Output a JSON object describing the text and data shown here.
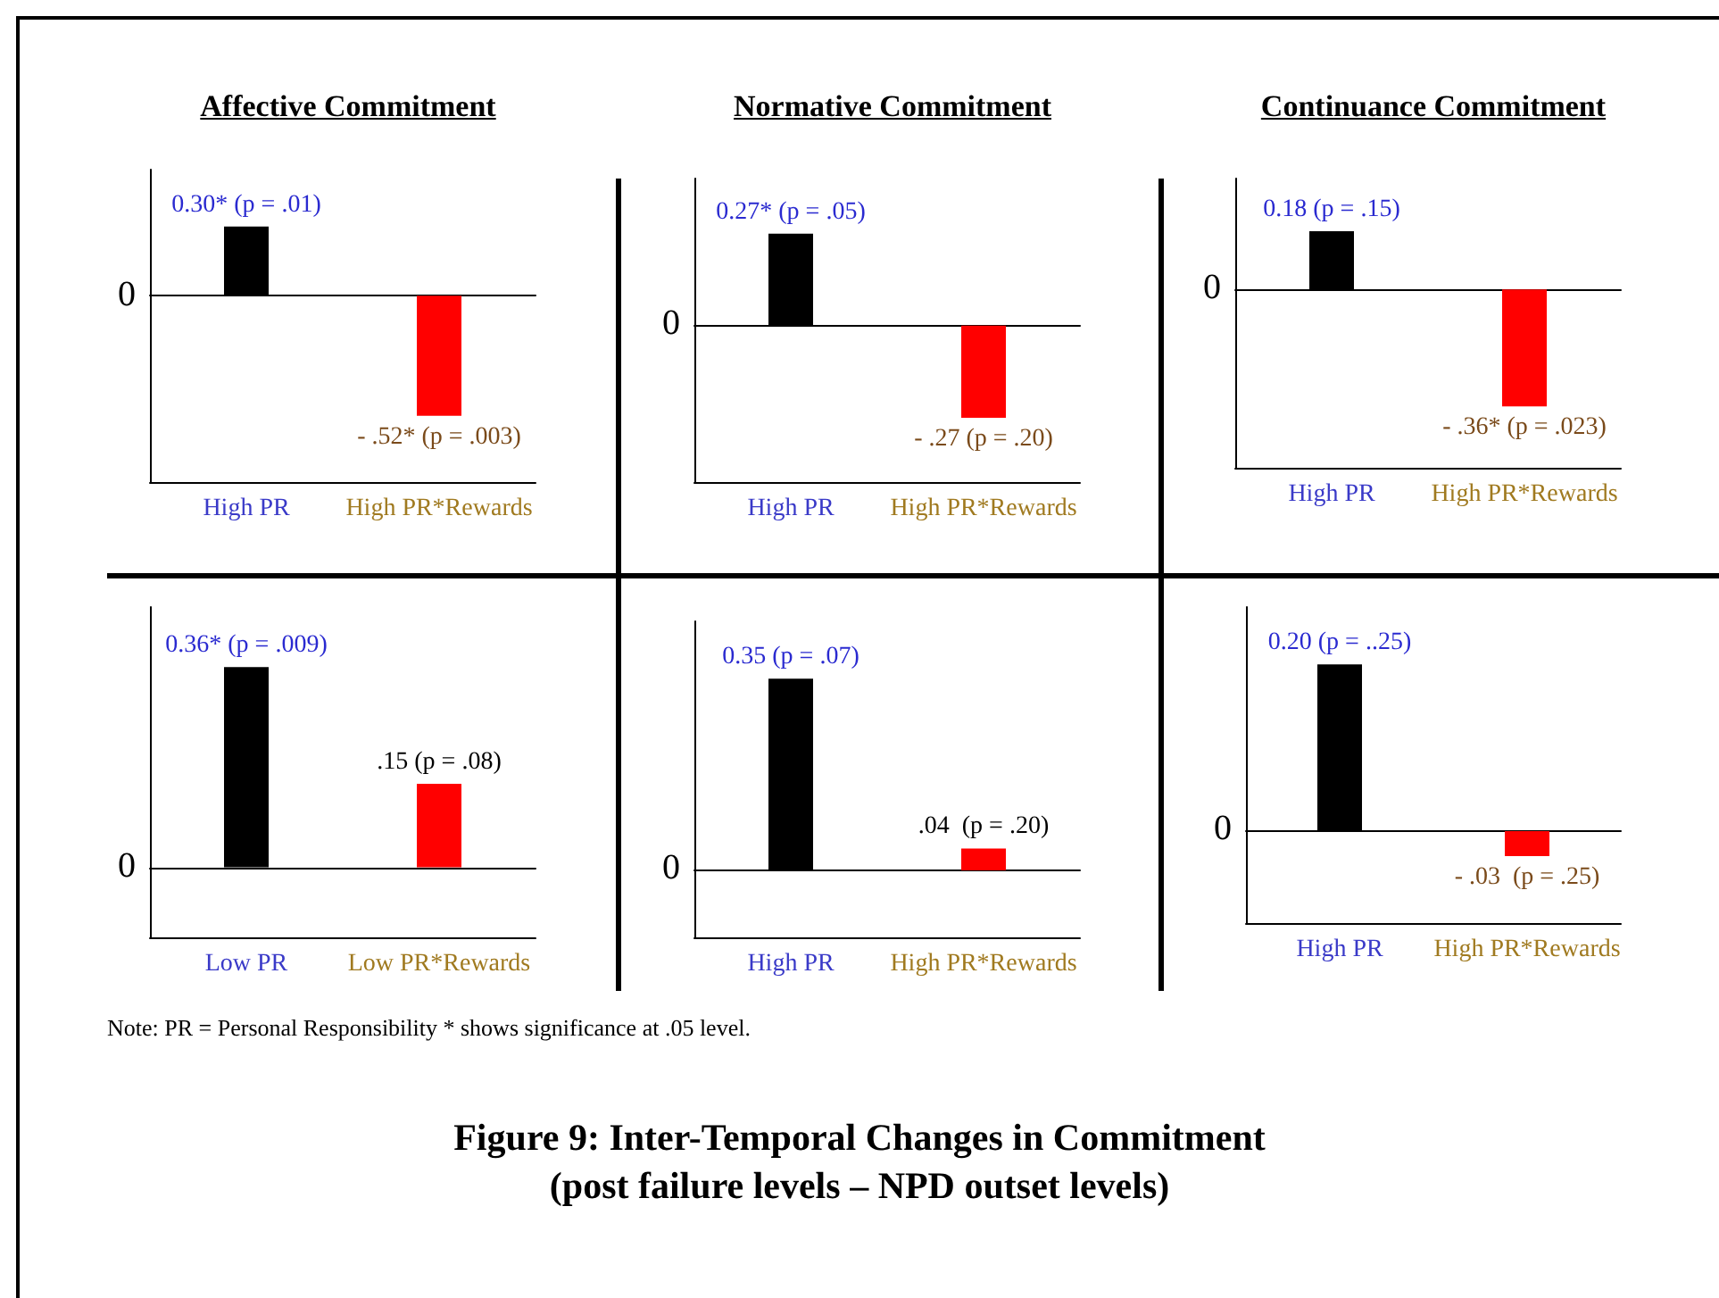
{
  "chart_data": [
    {
      "type": "bar",
      "title": "Affective Commitment",
      "categories": [
        "High PR",
        "High PR*Rewards"
      ],
      "values": [
        0.3,
        -0.52
      ],
      "colors": [
        "#000000",
        "#ff0000"
      ],
      "value_labels": [
        "0.30* (p = .01)",
        "- .52* (p = .003)"
      ],
      "annotations": [
        "0"
      ]
    },
    {
      "type": "bar",
      "title": "Normative Commitment",
      "categories": [
        "High PR",
        "High PR*Rewards"
      ],
      "values": [
        0.27,
        -0.27
      ],
      "colors": [
        "#000000",
        "#ff0000"
      ],
      "value_labels": [
        "0.27* (p = .05)",
        "- .27 (p = .20)"
      ],
      "annotations": [
        "0"
      ]
    },
    {
      "type": "bar",
      "title": "Continuance Commitment",
      "categories": [
        "High PR",
        "High PR*Rewards"
      ],
      "values": [
        0.18,
        -0.36
      ],
      "colors": [
        "#000000",
        "#ff0000"
      ],
      "value_labels": [
        "0.18 (p = .15)",
        "- .36* (p = .023)"
      ],
      "annotations": [
        "0"
      ]
    },
    {
      "type": "bar",
      "categories": [
        "Low PR",
        "Low PR*Rewards"
      ],
      "values": [
        0.36,
        0.15
      ],
      "colors": [
        "#000000",
        "#ff0000"
      ],
      "value_labels": [
        "0.36* (p = .009)",
        ".15 (p = .08)"
      ],
      "annotations": [
        "0",
        "Note: PR = Personal Responsibility  * shows significance at .05 level."
      ]
    },
    {
      "type": "bar",
      "categories": [
        "High PR",
        "High PR*Rewards"
      ],
      "values": [
        0.35,
        0.04
      ],
      "colors": [
        "#000000",
        "#ff0000"
      ],
      "value_labels": [
        "0.35 (p = .07)",
        ".04  (p = .20)"
      ],
      "annotations": [
        "0",
        "Figure 9: Inter-Temporal Changes in Commitment",
        "(post failure levels – NPD outset levels)"
      ]
    },
    {
      "type": "bar",
      "categories": [
        "High PR",
        "High PR*Rewards"
      ],
      "values": [
        0.2,
        -0.03
      ],
      "colors": [
        "#000000",
        "#ff0000"
      ],
      "value_labels": [
        "0.20 (p = ..25)",
        "- .03  (p = .25)"
      ],
      "annotations": [
        "0"
      ]
    }
  ]
}
